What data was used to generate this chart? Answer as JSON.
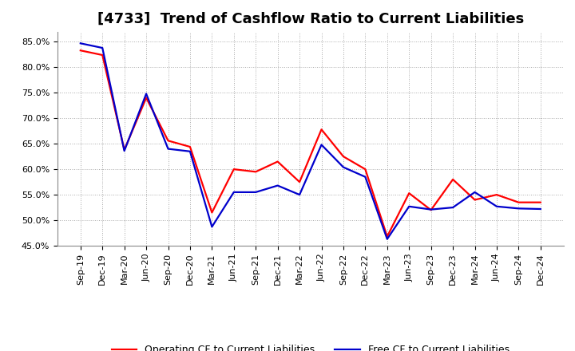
{
  "title": "[4733]  Trend of Cashflow Ratio to Current Liabilities",
  "x_labels": [
    "Sep-19",
    "Dec-19",
    "Mar-20",
    "Jun-20",
    "Sep-20",
    "Dec-20",
    "Mar-21",
    "Jun-21",
    "Sep-21",
    "Dec-21",
    "Mar-22",
    "Jun-22",
    "Sep-22",
    "Dec-22",
    "Mar-23",
    "Jun-23",
    "Sep-23",
    "Dec-23",
    "Mar-24",
    "Jun-24",
    "Sep-24",
    "Dec-24"
  ],
  "operating_cf": [
    0.833,
    0.824,
    0.638,
    0.74,
    0.656,
    0.644,
    0.515,
    0.6,
    0.595,
    0.615,
    0.575,
    0.678,
    0.625,
    0.6,
    0.468,
    0.553,
    0.52,
    0.58,
    0.54,
    0.55,
    0.535,
    0.535
  ],
  "free_cf": [
    0.847,
    0.838,
    0.636,
    0.748,
    0.64,
    0.635,
    0.487,
    0.555,
    0.555,
    0.568,
    0.55,
    0.648,
    0.604,
    0.585,
    0.463,
    0.527,
    0.521,
    0.525,
    0.555,
    0.527,
    0.523,
    0.522
  ],
  "ylim_min": 0.45,
  "ylim_max": 0.87,
  "operating_color": "#ff0000",
  "free_color": "#0000cc",
  "background_color": "#ffffff",
  "plot_bg_color": "#ffffff",
  "grid_color": "#aaaaaa",
  "title_fontsize": 13,
  "tick_fontsize": 8,
  "legend_operating": "Operating CF to Current Liabilities",
  "legend_free": "Free CF to Current Liabilities",
  "yticks": [
    0.45,
    0.5,
    0.55,
    0.6,
    0.65,
    0.7,
    0.75,
    0.8,
    0.85
  ]
}
